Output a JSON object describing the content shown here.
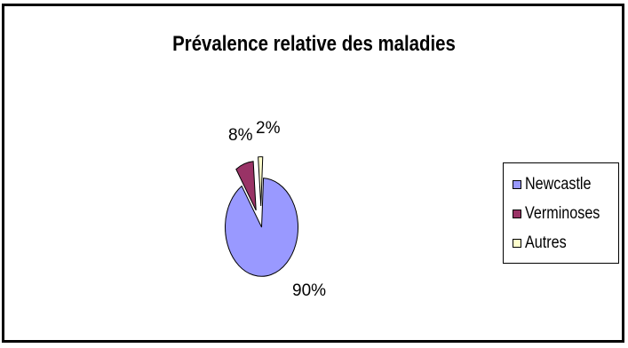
{
  "chart_data": {
    "type": "pie",
    "title": "Prévalence relative des maladies",
    "categories": [
      "Newcastle",
      "Verminoses",
      "Autres"
    ],
    "values": [
      90,
      8,
      2
    ],
    "data_labels": [
      "90%",
      "8%",
      "2%"
    ],
    "colors": [
      "#9999ff",
      "#993366",
      "#ffffcc"
    ],
    "exploded": true,
    "legend_position": "right"
  }
}
